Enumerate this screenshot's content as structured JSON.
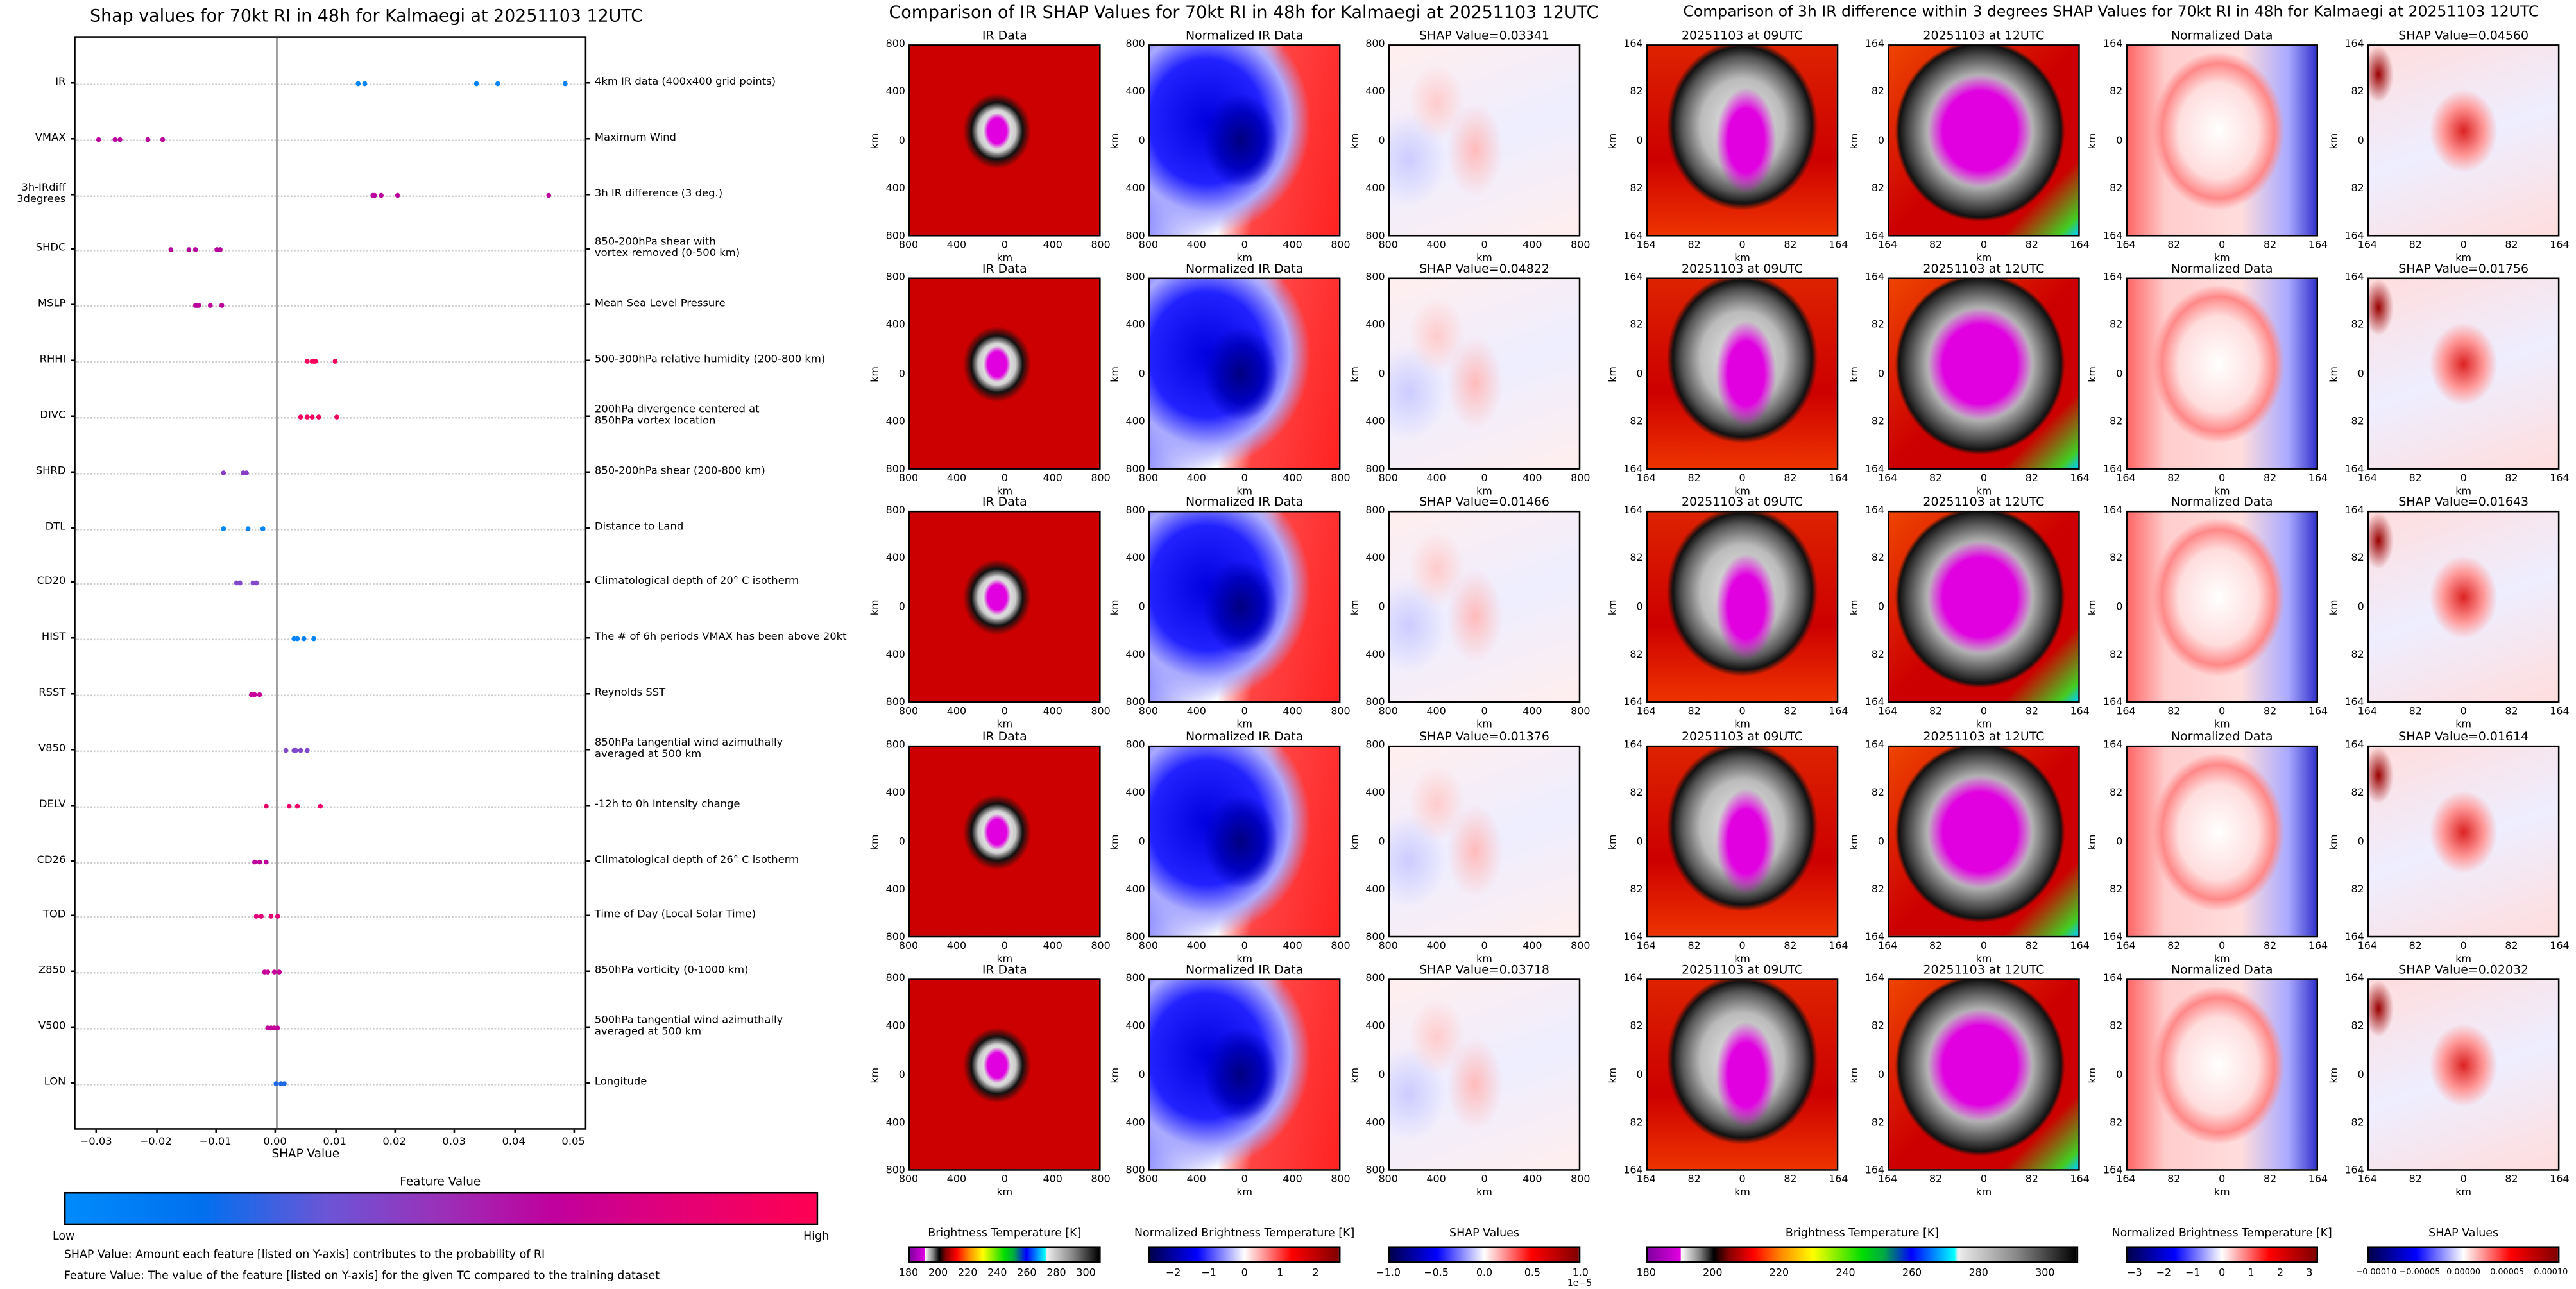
{
  "summary": {
    "title": "Shap values for 70kt RI in 48h for Kalmaegi at 20251103 12UTC",
    "xlabel": "SHAP Value",
    "colorbar_title": "Feature Value",
    "colorbar_low": "Low",
    "colorbar_high": "High",
    "note1": "SHAP Value: Amount each feature [listed on Y-axis] contributes to the probability of RI",
    "note2": "Feature Value: The value of the feature [listed on Y-axis] for the given TC compared to the training dataset"
  },
  "chart_data": {
    "type": "scatter",
    "title": "Shap values for 70kt RI in 48h for Kalmaegi at 20251103 12UTC",
    "xlabel": "SHAP Value",
    "xlim": [
      -0.0337,
      0.0522
    ],
    "xticks": [
      -0.03,
      -0.02,
      -0.01,
      0.0,
      0.01,
      0.02,
      0.03,
      0.04,
      0.05
    ],
    "xtick_labels": [
      "−0.03",
      "−0.02",
      "−0.01",
      "0.00",
      "0.01",
      "0.02",
      "0.03",
      "0.04",
      "0.05"
    ],
    "colormap_stops": [
      "#008bfb",
      "#0070ef",
      "#7b4fd1",
      "#b3089f",
      "#c8009a",
      "#ff0052"
    ],
    "features": [
      {
        "name": "IR",
        "description": "4km IR data (400x400 grid points)",
        "feature_value": 0.05,
        "shap": [
          0.01376,
          0.01466,
          0.03341,
          0.03718,
          0.04822
        ]
      },
      {
        "name": "VMAX",
        "description": "Maximum Wind",
        "feature_value": 0.68,
        "shap": [
          -0.0298,
          -0.0271,
          -0.0263,
          -0.0217,
          -0.0191
        ]
      },
      {
        "name": "3h-IRdiff\n3degrees",
        "description": "3h IR difference (3 deg.)",
        "feature_value": 0.68,
        "shap": [
          0.01614,
          0.01643,
          0.01756,
          0.02032,
          0.0456
        ]
      },
      {
        "name": "SHDC",
        "description": "850-200hPa shear with\nvortex removed (0-500 km)",
        "feature_value": 0.64,
        "shap": [
          -0.0178,
          -0.0146,
          -0.0135,
          -0.0101,
          -0.0094
        ]
      },
      {
        "name": "MSLP",
        "description": "Mean Sea Level Pressure",
        "feature_value": 0.68,
        "shap": [
          -0.0136,
          -0.0132,
          -0.013,
          -0.0111,
          -0.0093
        ]
      },
      {
        "name": "RHHI",
        "description": "500-300hPa relative humidity (200-800 km)",
        "feature_value": 0.97,
        "shap": [
          0.005,
          0.0059,
          0.0062,
          0.0064,
          0.0097
        ]
      },
      {
        "name": "DIVC",
        "description": "200hPa divergence centered at\n850hPa vortex location",
        "feature_value": 0.96,
        "shap": [
          0.0041,
          0.0052,
          0.006,
          0.0071,
          0.01
        ]
      },
      {
        "name": "SHRD",
        "description": "850-200hPa shear (200-800 km)",
        "feature_value": 0.45,
        "shap": [
          -0.0088,
          -0.0057,
          -0.0055,
          -0.0052
        ]
      },
      {
        "name": "DTL",
        "description": "Distance to Land",
        "feature_value": 0.04,
        "shap": [
          -0.009,
          -0.0088,
          -0.0047,
          -0.0024
        ]
      },
      {
        "name": "CD20",
        "description": "Climatological depth of 20° C isotherm",
        "feature_value": 0.42,
        "shap": [
          -0.0067,
          -0.0061,
          -0.004,
          -0.0034
        ]
      },
      {
        "name": "HIST",
        "description": "The # of 6h periods VMAX has been above 20kt",
        "feature_value": 0.05,
        "shap": [
          0.0028,
          0.0036,
          0.0046,
          0.0063
        ]
      },
      {
        "name": "RSST",
        "description": "Reynolds SST",
        "feature_value": 0.8,
        "shap": [
          -0.0043,
          -0.0036,
          -0.0029
        ]
      },
      {
        "name": "V850",
        "description": "850hPa tangential wind azimuthally\naveraged at 500 km",
        "feature_value": 0.42,
        "shap": [
          0.0016,
          0.0028,
          0.0033,
          0.0039,
          0.005
        ]
      },
      {
        "name": "DELV",
        "description": "-12h to 0h Intensity change",
        "feature_value": 0.93,
        "shap": [
          -0.0017,
          0.0021,
          0.0035,
          0.0073
        ]
      },
      {
        "name": "CD26",
        "description": "Climatological depth of 26° C isotherm",
        "feature_value": 0.7,
        "shap": [
          -0.0036,
          -0.0029,
          -0.0017
        ]
      },
      {
        "name": "TOD",
        "description": "Time of Day (Local Solar Time)",
        "feature_value": 0.9,
        "shap": [
          -0.0034,
          -0.0027,
          -0.001,
          0.0001
        ]
      },
      {
        "name": "Z850",
        "description": "850hPa vorticity (0-1000 km)",
        "feature_value": 0.8,
        "shap": [
          -0.0021,
          -0.0016,
          -0.0003,
          0.0005
        ]
      },
      {
        "name": "V500",
        "description": "500hPa tangential wind azimuthally\naveraged at 500 km",
        "feature_value": 0.75,
        "shap": [
          -0.0016,
          -0.0009,
          -0.0005,
          0.0002
        ]
      },
      {
        "name": "LON",
        "description": "Longitude",
        "feature_value": 0.25,
        "shap": [
          -0.0002,
          0.0006,
          0.0013
        ]
      }
    ]
  },
  "ir_group": {
    "title": "Comparison of IR SHAP Values for 70kt RI in 48h for Kalmaegi at 20251103 12UTC",
    "axis_label": "km",
    "ticks": [
      "800",
      "400",
      "0",
      "400",
      "800"
    ],
    "columns": [
      {
        "title": "IR Data",
        "image": "ir"
      },
      {
        "title": "Normalized IR Data",
        "image": "norm"
      },
      {
        "title_prefix": "SHAP Value=",
        "image": "shap"
      }
    ],
    "shap_values": [
      "0.03341",
      "0.04822",
      "0.01466",
      "0.01376",
      "0.03718"
    ],
    "colorbars": [
      {
        "title": "Brightness Temperature [K]",
        "cmap": "ir",
        "vmin": 180,
        "vmax": 310,
        "ticks": [
          180,
          200,
          220,
          240,
          260,
          280,
          300
        ],
        "labels": [
          "180",
          "200",
          "220",
          "240",
          "260",
          "280",
          "300"
        ]
      },
      {
        "title": "Normalized Brightness Temperature [K]",
        "cmap": "seismic",
        "vmin": -2.7,
        "vmax": 2.7,
        "ticks": [
          -2,
          -1,
          0,
          1,
          2
        ],
        "labels": [
          "−2",
          "−1",
          "0",
          "1",
          "2"
        ]
      },
      {
        "title": "SHAP Values",
        "cmap": "seismic",
        "vmin": -1,
        "vmax": 1,
        "ticks": [
          -1,
          -0.5,
          0,
          0.5,
          1
        ],
        "labels": [
          "−1.0",
          "−0.5",
          "0.0",
          "0.5",
          "1.0"
        ],
        "offset": "1e−5"
      }
    ]
  },
  "diff_group": {
    "title": "Comparison of 3h IR difference within 3 degrees SHAP Values for 70kt RI in 48h for Kalmaegi at 20251103 12UTC",
    "axis_label": "km",
    "ticks": [
      "164",
      "82",
      "0",
      "82",
      "164"
    ],
    "columns": [
      {
        "title": "20251103 at 09UTC",
        "image": "ir09"
      },
      {
        "title": "20251103 at 12UTC",
        "image": "ir12"
      },
      {
        "title": "Normalized Data",
        "image": "normd"
      },
      {
        "title_prefix": "SHAP Value=",
        "image": "shap3"
      }
    ],
    "shap_values": [
      "0.04560",
      "0.01756",
      "0.01643",
      "0.01614",
      "0.02032"
    ],
    "colorbars": [
      {
        "title": "Brightness Temperature [K]",
        "cmap": "ir",
        "vmin": 180,
        "vmax": 310,
        "ticks": [
          180,
          200,
          220,
          240,
          260,
          280,
          300
        ],
        "labels": [
          "180",
          "200",
          "220",
          "240",
          "260",
          "280",
          "300"
        ]
      },
      {
        "title": "Normalized Brightness Temperature [K]",
        "cmap": "seismic",
        "vmin": -3.3,
        "vmax": 3.3,
        "ticks": [
          -3,
          -2,
          -1,
          0,
          1,
          2,
          3
        ],
        "labels": [
          "−3",
          "−2",
          "−1",
          "0",
          "1",
          "2",
          "3"
        ]
      },
      {
        "title": "SHAP Values",
        "cmap": "seismic",
        "vmin": -0.00011,
        "vmax": 0.00011,
        "ticks": [
          -0.0001,
          -5e-05,
          0,
          5e-05,
          0.0001
        ],
        "labels": [
          "−0.00010",
          "−0.00005",
          "0.00000",
          "0.00005",
          "0.00010"
        ]
      }
    ]
  }
}
